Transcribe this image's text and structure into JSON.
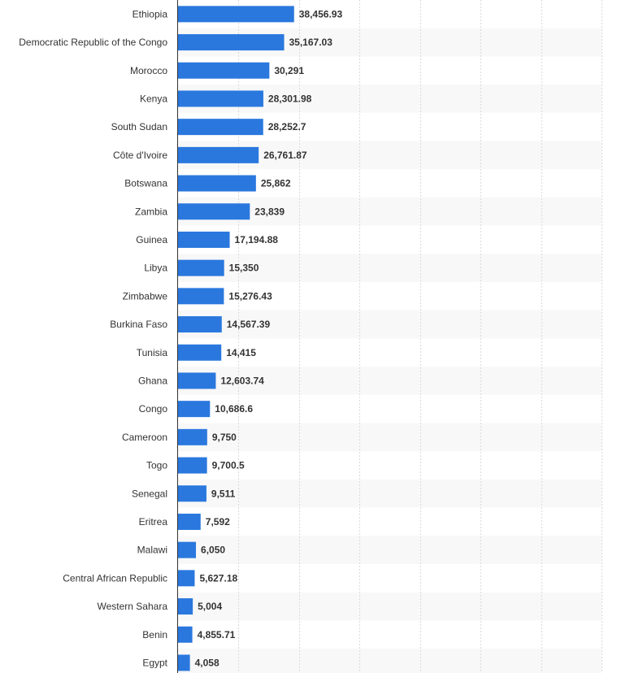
{
  "chart_data": {
    "type": "bar",
    "orientation": "horizontal",
    "categories": [
      "Ethiopia",
      "Democratic Republic of the Congo",
      "Morocco",
      "Kenya",
      "South Sudan",
      "Côte d'Ivoire",
      "Botswana",
      "Zambia",
      "Guinea",
      "Libya",
      "Zimbabwe",
      "Burkina Faso",
      "Tunisia",
      "Ghana",
      "Congo",
      "Cameroon",
      "Togo",
      "Senegal",
      "Eritrea",
      "Malawi",
      "Central African Republic",
      "Western Sahara",
      "Benin",
      "Egypt"
    ],
    "values": [
      38456.93,
      35167.03,
      30291,
      28301.98,
      28252.7,
      26761.87,
      25862,
      23839,
      17194.88,
      15350,
      15276.43,
      14567.39,
      14415,
      12603.74,
      10686.6,
      9750,
      9700.5,
      9511,
      7592,
      6050,
      5627.18,
      5004,
      4855.71,
      4058
    ],
    "value_labels": [
      "38,456.93",
      "35,167.03",
      "30,291",
      "28,301.98",
      "28,252.7",
      "26,761.87",
      "25,862",
      "23,839",
      "17,194.88",
      "15,350",
      "15,276.43",
      "14,567.39",
      "14,415",
      "12,603.74",
      "10,686.6",
      "9,750",
      "9,700.5",
      "9,511",
      "7,592",
      "6,050",
      "5,627.18",
      "5,004",
      "4,855.71",
      "4,058"
    ],
    "xlim": [
      0,
      140000
    ],
    "grid": true,
    "bar_color": "#2a78de",
    "stripe_color": "#f8f8f8"
  }
}
